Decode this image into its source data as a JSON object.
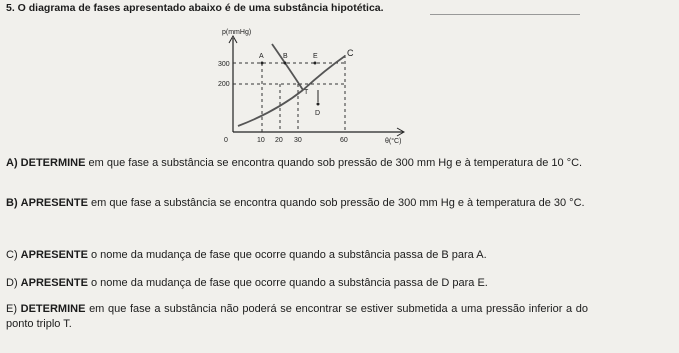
{
  "header": {
    "title": "5. O diagrama de fases apresentado abaixo é de uma substância hipotética."
  },
  "diagram": {
    "y_axis_label": "p(mmHg)",
    "y_ticks": [
      300,
      200
    ],
    "x_ticks": [
      0,
      10,
      20,
      30,
      60
    ],
    "x_axis_label": "θ(°C)",
    "points": {
      "A": "A",
      "B": "B",
      "E": "E",
      "C": "C",
      "T": "T",
      "D": "D"
    }
  },
  "questions": [
    {
      "letter": "A)",
      "verb": "DETERMINE",
      "text": "em que fase a substância se encontra quando sob pressão de 300 mm Hg e à temperatura de 10 °C."
    },
    {
      "letter": "B)",
      "verb": "APRESENTE",
      "text": "em que fase a substância se encontra quando sob pressão de 300 mm Hg e à temperatura de 30 °C."
    },
    {
      "letter": "C)",
      "verb": "APRESENTE",
      "text": "o nome da mudança de fase que ocorre quando a substância passa de B para A."
    },
    {
      "letter": "D)",
      "verb": "APRESENTE",
      "text": "o nome da mudança de fase que ocorre quando a substância passa de D para E."
    },
    {
      "letter": "E)",
      "verb": "DETERMINE",
      "text": "em que fase a substância não poderá se encontrar se estiver submetida a uma pressão inferior a do ponto triplo T."
    }
  ]
}
